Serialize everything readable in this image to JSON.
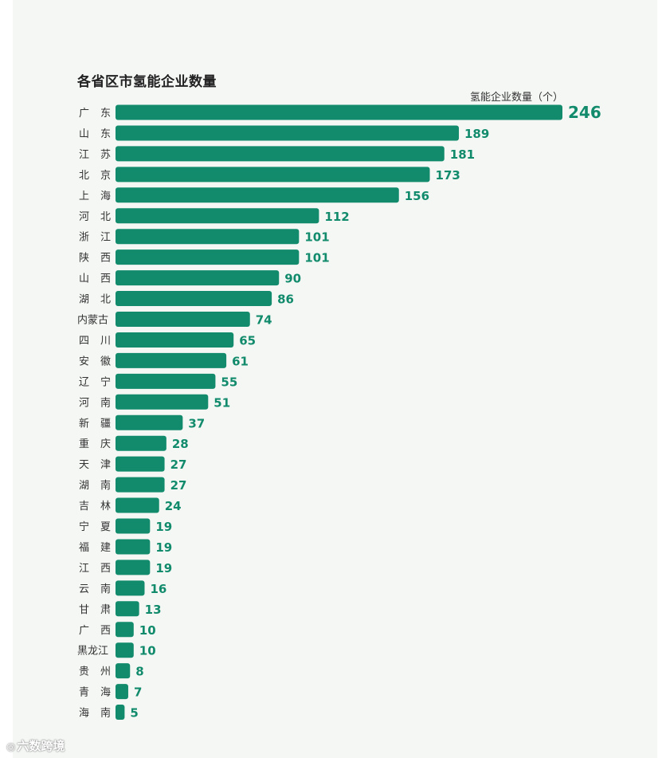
{
  "chart_data": {
    "type": "bar",
    "orientation": "horizontal",
    "title": "各省区市氢能企业数量",
    "unit_label": "氢能企业数量（个）",
    "categories": [
      "广 东",
      "山 东",
      "江 苏",
      "北 京",
      "上 海",
      "河 北",
      "浙 江",
      "陕 西",
      "山 西",
      "湖 北",
      "内蒙古",
      "四 川",
      "安 徽",
      "辽 宁",
      "河 南",
      "新 疆",
      "重 庆",
      "天 津",
      "湖 南",
      "吉 林",
      "宁 夏",
      "福 建",
      "江 西",
      "云 南",
      "甘 肃",
      "广 西",
      "黑龙江",
      "贵 州",
      "青 海",
      "海 南"
    ],
    "values": [
      246,
      189,
      181,
      173,
      156,
      112,
      101,
      101,
      90,
      86,
      74,
      65,
      61,
      55,
      51,
      37,
      28,
      27,
      27,
      24,
      19,
      19,
      19,
      16,
      13,
      10,
      10,
      8,
      7,
      5
    ],
    "xlim": [
      0,
      246
    ],
    "grid": false,
    "bar_color": "#128b6c",
    "label_color": "#128b6c",
    "category_color": "#333333"
  },
  "watermark": {
    "icon": "eye-icon",
    "text": "六数跨境"
  }
}
